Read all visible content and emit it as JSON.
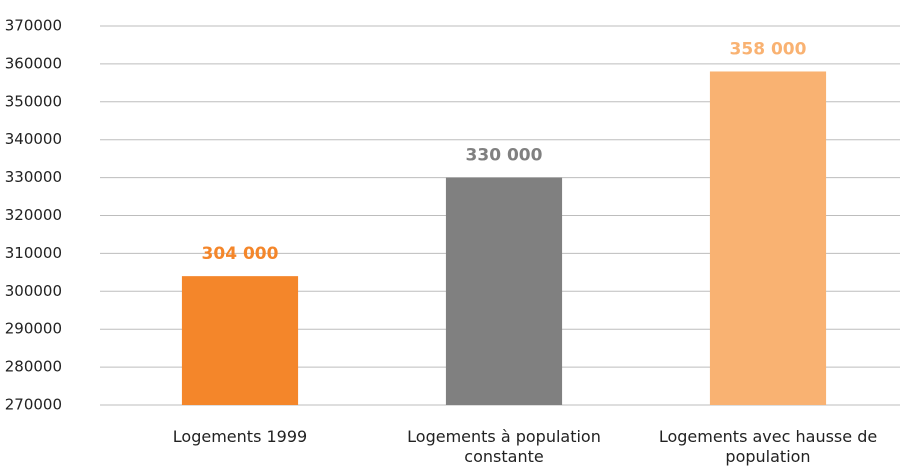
{
  "chart_data": {
    "type": "bar",
    "categories": [
      "Logements 1999",
      "Logements à population constante",
      "Logements avec hausse de population"
    ],
    "values": [
      304000,
      330000,
      358000
    ],
    "value_labels": [
      "304 000",
      "330 000",
      "358 000"
    ],
    "colors": [
      "#f4862a",
      "#808080",
      "#f9b272"
    ],
    "label_colors": [
      "#f4862a",
      "#808080",
      "#f9b272"
    ],
    "ylim": [
      270000,
      370000
    ],
    "yticks": [
      270000,
      280000,
      290000,
      300000,
      310000,
      320000,
      330000,
      340000,
      350000,
      360000,
      370000
    ],
    "grid": true
  }
}
